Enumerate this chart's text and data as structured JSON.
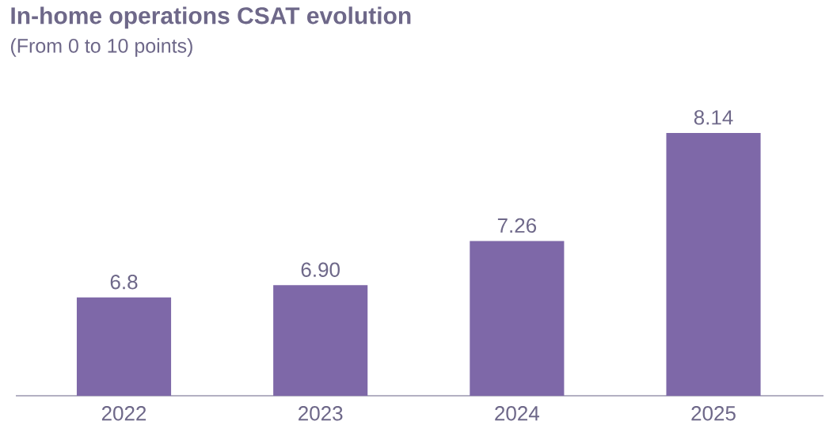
{
  "chart_data": {
    "type": "bar",
    "title": "In-home operations CSAT evolution",
    "subtitle": "(From 0 to 10 points)",
    "categories": [
      "2022",
      "2023",
      "2024",
      "2025"
    ],
    "values": [
      6.8,
      6.9,
      7.26,
      8.14
    ],
    "value_labels": [
      "6.8",
      "6.90",
      "7.26",
      "8.14"
    ],
    "color": "#7e68a8",
    "ylim": [
      6,
      8.14
    ],
    "tick_labels": "x"
  }
}
